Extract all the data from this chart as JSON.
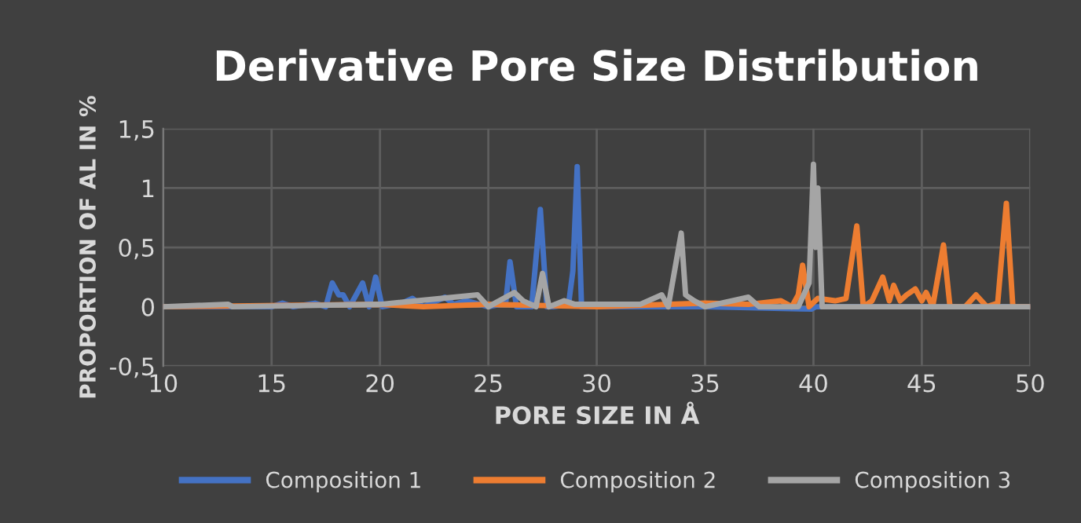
{
  "chart_data": {
    "type": "line",
    "title": "Derivative Pore Size Distribution",
    "xlabel": "PORE SIZE IN Å",
    "ylabel": "PROPORTION OF AL IN %",
    "xlim": [
      10,
      50
    ],
    "xticks": [
      10,
      15,
      20,
      25,
      30,
      35,
      40,
      45,
      50
    ],
    "ylim": [
      -0.5,
      1.5
    ],
    "yticks": [
      {
        "value": -0.5,
        "label": "-0,5"
      },
      0,
      {
        "value": 0.5,
        "label": "0,5"
      },
      1,
      {
        "value": 1.5,
        "label": "1,5"
      }
    ],
    "grid": true,
    "legend": "bottom",
    "marker": "none",
    "line_style": "solid",
    "series": [
      {
        "name": "Composition 1",
        "color": "#4472c4",
        "x": [
          10,
          15,
          15.5,
          16,
          17,
          17.5,
          17.8,
          18.1,
          18.3,
          18.6,
          19.2,
          19.5,
          19.8,
          20.1,
          21,
          21.5,
          22,
          23,
          23.4,
          24,
          25,
          25.8,
          26,
          26.3,
          27,
          27.4,
          27.7,
          28,
          28.7,
          28.9,
          29.1,
          29.3,
          29.6,
          30,
          35,
          39.9,
          40.1,
          41,
          50
        ],
        "values": [
          0,
          0,
          0.03,
          0,
          0.03,
          0,
          0.2,
          0.1,
          0.1,
          0,
          0.2,
          0,
          0.25,
          0,
          0.03,
          0.07,
          0,
          0.08,
          0.02,
          0.05,
          0,
          0.03,
          0.38,
          0,
          0,
          0.82,
          0,
          0,
          0.02,
          0.3,
          1.18,
          0,
          0,
          0,
          0,
          -0.02,
          0,
          0,
          0
        ]
      },
      {
        "name": "Composition 2",
        "color": "#ed7d31",
        "x": [
          10,
          20,
          22,
          25,
          30,
          35,
          37,
          38.5,
          39,
          39.3,
          39.5,
          39.8,
          40.2,
          41,
          41.5,
          42,
          42.3,
          42.7,
          43.2,
          43.5,
          43.7,
          44,
          44.3,
          44.7,
          45,
          45.2,
          45.5,
          46,
          46.3,
          47,
          47.5,
          48,
          48.5,
          48.9,
          49.2,
          50
        ],
        "values": [
          0,
          0.02,
          0,
          0.02,
          0,
          0.03,
          0.02,
          0.05,
          0,
          0.1,
          0.35,
          0,
          0.07,
          0.05,
          0.07,
          0.68,
          0,
          0.05,
          0.25,
          0.05,
          0.18,
          0.05,
          0.1,
          0.15,
          0.05,
          0.12,
          0,
          0.52,
          0,
          0,
          0.1,
          0,
          0.03,
          0.87,
          0,
          0
        ]
      },
      {
        "name": "Composition 3",
        "color": "#a5a5a5",
        "x": [
          10,
          13,
          13.2,
          20,
          24.5,
          25,
          26.2,
          26.6,
          27.2,
          27.5,
          27.8,
          28.5,
          29,
          30,
          32,
          33,
          33.3,
          33.9,
          34.1,
          34.5,
          35,
          37,
          37.5,
          39.3,
          39.8,
          40,
          40.1,
          40.2,
          40.4,
          41,
          50
        ],
        "values": [
          0,
          0.02,
          0,
          0.02,
          0.1,
          0,
          0.12,
          0.05,
          0,
          0.28,
          0,
          0.05,
          0.02,
          0.02,
          0.02,
          0.1,
          0,
          0.62,
          0.1,
          0.05,
          0,
          0.08,
          0,
          0,
          0.2,
          1.2,
          0.5,
          1.0,
          0,
          0,
          0
        ]
      }
    ]
  }
}
